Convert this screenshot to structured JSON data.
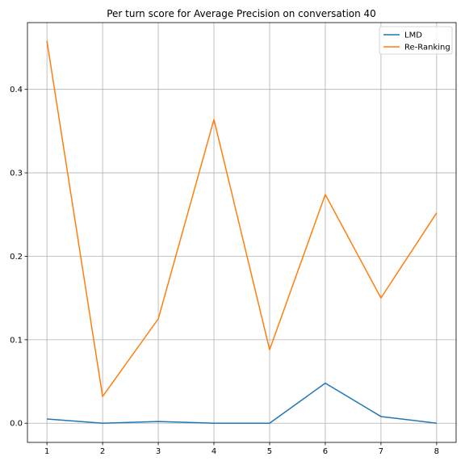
{
  "chart_data": {
    "type": "line",
    "title": "Per turn score for Average Precision on conversation 40",
    "xlabel": "",
    "ylabel": "",
    "x": [
      1,
      2,
      3,
      4,
      5,
      6,
      7,
      8
    ],
    "xticks": [
      "1",
      "2",
      "3",
      "4",
      "5",
      "6",
      "7",
      "8"
    ],
    "yticks": [
      "0.0",
      "0.1",
      "0.2",
      "0.3",
      "0.4"
    ],
    "xlim": [
      0.65,
      8.35
    ],
    "ylim": [
      -0.023,
      0.48
    ],
    "grid": true,
    "legend_position": "top-right",
    "series": [
      {
        "name": "LMD",
        "color": "#1f77b4",
        "values": [
          0.005,
          0.0,
          0.002,
          0.0,
          0.0,
          0.048,
          0.008,
          0.0
        ]
      },
      {
        "name": "Re-Ranking",
        "color": "#ff7f0e",
        "values": [
          0.458,
          0.032,
          0.125,
          0.364,
          0.088,
          0.274,
          0.15,
          0.252
        ]
      }
    ]
  }
}
